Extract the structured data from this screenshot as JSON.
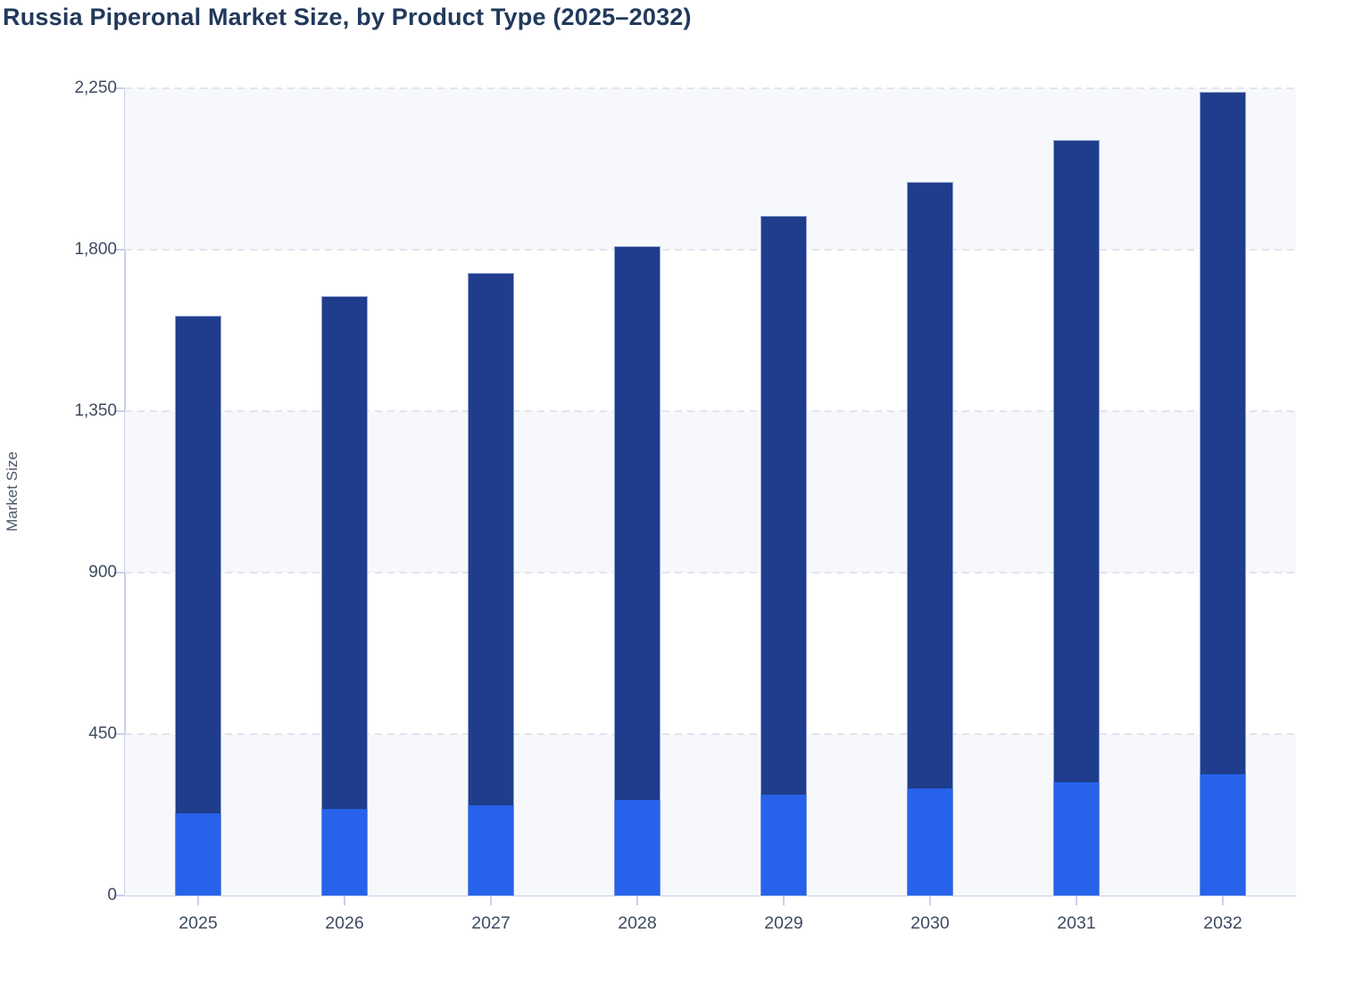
{
  "page": {
    "title": "Russia Piperonal Market Size, by Product Type (2025–2032)"
  },
  "y_axis": {
    "label": "Market Size",
    "tick_labels": [
      "0",
      "450",
      "900",
      "1,350",
      "1,800",
      "2,250"
    ]
  },
  "x_axis": {
    "tick_labels": [
      "2025",
      "2026",
      "2027",
      "2028",
      "2029",
      "2030",
      "2031",
      "2032"
    ]
  },
  "colors": {
    "title_text": "#21395B",
    "tick_text": "#3E4B61",
    "axis_line": "#C8D0EB",
    "gridline": "#E2E5ED",
    "band_fill": "#F6F8FB",
    "bar_dark_navy": "#1F3D8C",
    "bar_bright_blue": "#2663EA"
  },
  "chart_data": {
    "type": "bar",
    "stacked": true,
    "title": "Russia Piperonal Market Size, by Product Type (2025–2032)",
    "xlabel": "",
    "ylabel": "Market Size",
    "categories": [
      "2025",
      "2026",
      "2027",
      "2028",
      "2029",
      "2030",
      "2031",
      "2032"
    ],
    "series": [
      {
        "name": "bottom-segment-bright-blue",
        "color": "#2663EA",
        "values": [
          230,
          240,
          252,
          265,
          280,
          298,
          316,
          338
        ]
      },
      {
        "name": "top-segment-dark-navy",
        "color": "#1F3D8C",
        "values": [
          1385,
          1430,
          1483,
          1545,
          1615,
          1692,
          1789,
          1902
        ]
      }
    ],
    "stack_totals": [
      1615,
      1670,
      1735,
      1810,
      1895,
      1990,
      2105,
      2240
    ],
    "ylim": [
      0,
      2250
    ],
    "ytick_step": 450,
    "grid": "horizontal-dashed",
    "background_bands": "alternating light/white from top",
    "legend": "none"
  }
}
